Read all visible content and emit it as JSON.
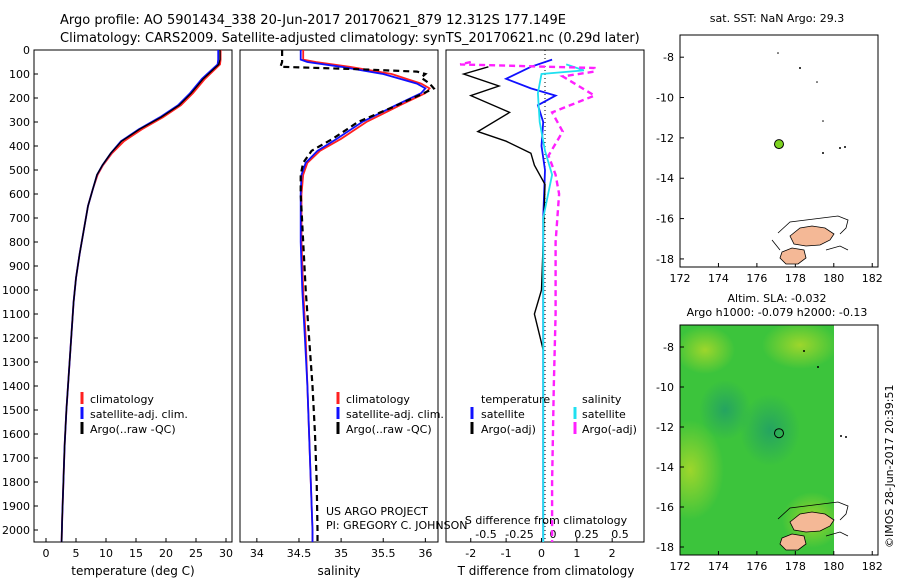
{
  "header": {
    "line1": "Argo profile: AO 5901434_338 20-Jun-2017 20170621_879 12.312S 177.149E",
    "line2": "Climatology: CARS2009. Satellite-adjusted climatology: synTS_20170621.nc (0.29d later)"
  },
  "colors": {
    "climatology": "#ff2020",
    "satellite": "#1010ff",
    "argo": "#000000",
    "sal_satellite": "#20e0f0",
    "sal_argo": "#ff20ff",
    "land": "#f4b896",
    "float_marker": "#7ed321",
    "sla_field": "#3cc43c"
  },
  "depth_axis": {
    "min": 0,
    "max": 2050,
    "ticks": [
      0,
      100,
      200,
      300,
      400,
      500,
      600,
      700,
      800,
      900,
      1000,
      1100,
      1200,
      1300,
      1400,
      1500,
      1600,
      1700,
      1800,
      1900,
      2000
    ]
  },
  "legend": {
    "climatology": "climatology",
    "satellite_clim": "satellite-adj. clim.",
    "argo_raw": "Argo(..raw -QC)",
    "temperature": "temperature",
    "salinity": "salinity",
    "satellite": "satellite",
    "argo_adj": "Argo(-adj)"
  },
  "credits": {
    "project": "US ARGO PROJECT",
    "pi": "PI: GREGORY C. JOHNSON"
  },
  "timestamp": "©IMOS 28-Jun-2017 20:39:51",
  "chart_data": [
    {
      "type": "line",
      "title": "",
      "xlabel": "temperature (deg C)",
      "ylabel": "",
      "xlim": [
        -2,
        31
      ],
      "ylim": [
        2050,
        0
      ],
      "xticks": [
        0,
        5,
        10,
        15,
        20,
        25,
        30
      ],
      "series": [
        {
          "name": "climatology",
          "color": "#ff2020",
          "points": [
            [
              29.1,
              0
            ],
            [
              29.1,
              40
            ],
            [
              29.0,
              60
            ],
            [
              26.5,
              120
            ],
            [
              24.5,
              180
            ],
            [
              22.5,
              230
            ],
            [
              19.5,
              280
            ],
            [
              16,
              330
            ],
            [
              13,
              380
            ],
            [
              11,
              430
            ],
            [
              9.5,
              480
            ],
            [
              8.6,
              520
            ],
            [
              7.8,
              580
            ],
            [
              7,
              650
            ],
            [
              6.3,
              750
            ],
            [
              5.6,
              850
            ],
            [
              5,
              950
            ],
            [
              4.6,
              1050
            ],
            [
              4.2,
              1200
            ],
            [
              3.8,
              1350
            ],
            [
              3.4,
              1500
            ],
            [
              3.1,
              1650
            ],
            [
              2.9,
              1800
            ],
            [
              2.7,
              1950
            ],
            [
              2.6,
              2050
            ]
          ]
        },
        {
          "name": "satellite-adj. clim.",
          "color": "#1010ff",
          "points": [
            [
              28.7,
              0
            ],
            [
              28.7,
              40
            ],
            [
              28.6,
              60
            ],
            [
              26,
              120
            ],
            [
              24,
              180
            ],
            [
              22,
              230
            ],
            [
              19,
              280
            ],
            [
              15.5,
              330
            ],
            [
              12.5,
              380
            ],
            [
              10.8,
              430
            ],
            [
              9.4,
              480
            ],
            [
              8.5,
              520
            ],
            [
              7.8,
              580
            ],
            [
              7,
              650
            ],
            [
              6.3,
              750
            ],
            [
              5.6,
              850
            ],
            [
              5,
              950
            ],
            [
              4.6,
              1050
            ],
            [
              4.2,
              1200
            ],
            [
              3.8,
              1350
            ],
            [
              3.4,
              1500
            ],
            [
              3.1,
              1650
            ],
            [
              2.9,
              1800
            ],
            [
              2.7,
              1950
            ],
            [
              2.6,
              2050
            ]
          ]
        },
        {
          "name": "Argo(..raw -QC)",
          "color": "#000000",
          "points": [
            [
              29,
              0
            ],
            [
              29,
              40
            ],
            [
              28.8,
              60
            ],
            [
              26.2,
              120
            ],
            [
              24.2,
              180
            ],
            [
              22.2,
              230
            ],
            [
              19.2,
              280
            ],
            [
              15.6,
              330
            ],
            [
              12.6,
              380
            ],
            [
              10.8,
              430
            ],
            [
              9.4,
              480
            ],
            [
              8.5,
              520
            ],
            [
              7.8,
              580
            ],
            [
              7,
              650
            ],
            [
              6.3,
              750
            ],
            [
              5.6,
              850
            ],
            [
              5,
              950
            ],
            [
              4.6,
              1050
            ],
            [
              4.2,
              1200
            ],
            [
              3.8,
              1350
            ],
            [
              3.4,
              1500
            ],
            [
              3.1,
              1650
            ],
            [
              2.9,
              1800
            ],
            [
              2.7,
              1950
            ],
            [
              2.6,
              2050
            ]
          ]
        }
      ]
    },
    {
      "type": "line",
      "title": "",
      "xlabel": "salinity",
      "ylabel": "",
      "xlim": [
        33.8,
        36.15
      ],
      "ylim": [
        2050,
        0
      ],
      "xticks": [
        34,
        34.5,
        35,
        35.5,
        36
      ],
      "series": [
        {
          "name": "climatology",
          "color": "#ff2020",
          "points": [
            [
              34.55,
              0
            ],
            [
              34.55,
              40
            ],
            [
              34.7,
              50
            ],
            [
              35.1,
              70
            ],
            [
              35.6,
              100
            ],
            [
              35.95,
              140
            ],
            [
              36.05,
              160
            ],
            [
              36.0,
              180
            ],
            [
              35.7,
              230
            ],
            [
              35.3,
              300
            ],
            [
              35.0,
              370
            ],
            [
              34.75,
              420
            ],
            [
              34.6,
              470
            ],
            [
              34.55,
              520
            ],
            [
              34.53,
              600
            ],
            [
              34.53,
              800
            ],
            [
              34.55,
              1000
            ],
            [
              34.58,
              1200
            ],
            [
              34.6,
              1400
            ],
            [
              34.62,
              1600
            ],
            [
              34.64,
              1800
            ],
            [
              34.66,
              2000
            ],
            [
              34.66,
              2050
            ]
          ]
        },
        {
          "name": "satellite-adj. clim.",
          "color": "#1010ff",
          "points": [
            [
              34.52,
              0
            ],
            [
              34.52,
              40
            ],
            [
              34.6,
              50
            ],
            [
              35.0,
              70
            ],
            [
              35.5,
              100
            ],
            [
              35.9,
              140
            ],
            [
              36.0,
              160
            ],
            [
              35.95,
              180
            ],
            [
              35.65,
              230
            ],
            [
              35.25,
              300
            ],
            [
              34.95,
              370
            ],
            [
              34.72,
              420
            ],
            [
              34.58,
              470
            ],
            [
              34.53,
              520
            ],
            [
              34.52,
              600
            ],
            [
              34.52,
              800
            ],
            [
              34.54,
              1000
            ],
            [
              34.57,
              1200
            ],
            [
              34.6,
              1400
            ],
            [
              34.62,
              1600
            ],
            [
              34.64,
              1800
            ],
            [
              34.66,
              2000
            ],
            [
              34.66,
              2050
            ]
          ]
        },
        {
          "name": "Argo(..raw -QC)",
          "color": "#000000",
          "points": [
            [
              34.3,
              0
            ],
            [
              34.3,
              50
            ],
            [
              34.28,
              70
            ],
            [
              35.2,
              80
            ],
            [
              35.9,
              90
            ],
            [
              36.0,
              100
            ],
            [
              35.95,
              115
            ],
            [
              36.05,
              140
            ],
            [
              36.1,
              160
            ],
            [
              35.95,
              185
            ],
            [
              35.6,
              240
            ],
            [
              35.2,
              300
            ],
            [
              34.9,
              370
            ],
            [
              34.65,
              420
            ],
            [
              34.55,
              470
            ],
            [
              34.52,
              520
            ],
            [
              34.52,
              600
            ],
            [
              34.55,
              800
            ],
            [
              34.58,
              1000
            ],
            [
              34.62,
              1200
            ],
            [
              34.66,
              1400
            ],
            [
              34.69,
              1600
            ],
            [
              34.71,
              1800
            ],
            [
              34.72,
              2000
            ],
            [
              34.72,
              2050
            ]
          ]
        }
      ]
    },
    {
      "type": "line",
      "title": "",
      "xlabel": "T difference from climatology",
      "xlabel2": "S difference from climatology",
      "ylabel": "",
      "xlim": [
        -2.7,
        2.9
      ],
      "ylim": [
        2050,
        0
      ],
      "xticks": [
        -2,
        -1,
        0,
        1,
        2
      ],
      "xticklabels2": [
        "-0.5",
        "-0.25",
        "0",
        "0.25",
        "0.5"
      ],
      "series": [
        {
          "name": "satellite",
          "color": "#1010ff",
          "points": [
            [
              0.3,
              40
            ],
            [
              -0.3,
              70
            ],
            [
              -1.0,
              120
            ],
            [
              -0.3,
              160
            ],
            [
              0.4,
              190
            ],
            [
              -0.1,
              230
            ],
            [
              0.05,
              300
            ],
            [
              0.0,
              400
            ],
            [
              0.1,
              500
            ],
            [
              0.05,
              700
            ],
            [
              0.05,
              1000
            ],
            [
              0.05,
              1500
            ],
            [
              0.05,
              2050
            ]
          ]
        },
        {
          "name": "Argo(-adj)",
          "color": "#000000",
          "points": [
            [
              -1.5,
              70
            ],
            [
              -2.2,
              100
            ],
            [
              -1.2,
              150
            ],
            [
              -2.0,
              190
            ],
            [
              -0.9,
              260
            ],
            [
              -1.8,
              340
            ],
            [
              -1.0,
              380
            ],
            [
              -0.3,
              430
            ],
            [
              -0.2,
              480
            ],
            [
              0.1,
              560
            ],
            [
              0.05,
              800
            ],
            [
              0.0,
              1000
            ],
            [
              -0.2,
              1100
            ],
            [
              0.05,
              1250
            ],
            [
              0.05,
              1600
            ],
            [
              0.05,
              2050
            ]
          ]
        },
        {
          "name": "S satellite",
          "color": "#20e0f0",
          "points": [
            [
              0.7,
              60
            ],
            [
              1.2,
              85
            ],
            [
              0.0,
              100
            ],
            [
              -0.1,
              180
            ],
            [
              -0.05,
              300
            ],
            [
              0.1,
              420
            ],
            [
              0.3,
              520
            ],
            [
              0.05,
              700
            ],
            [
              0.05,
              1500
            ],
            [
              0.05,
              2050
            ]
          ]
        },
        {
          "name": "S Argo(-adj)",
          "color": "#ff20ff",
          "points": [
            [
              -2.0,
              50
            ],
            [
              -2.3,
              60
            ],
            [
              1.5,
              75
            ],
            [
              1.5,
              90
            ],
            [
              0.6,
              110
            ],
            [
              1.5,
              190
            ],
            [
              0.3,
              260
            ],
            [
              0.6,
              340
            ],
            [
              0.2,
              440
            ],
            [
              0.4,
              520
            ],
            [
              0.5,
              600
            ],
            [
              0.4,
              800
            ],
            [
              0.4,
              1100
            ],
            [
              0.35,
              1400
            ],
            [
              0.3,
              1800
            ],
            [
              0.3,
              2050
            ]
          ]
        }
      ]
    }
  ],
  "map_top": {
    "title": "sat. SST: NaN Argo: 29.3",
    "xticks": [
      172,
      174,
      176,
      178,
      180,
      182
    ],
    "yticks": [
      -8,
      -10,
      -12,
      -14,
      -16,
      -18
    ],
    "xlim": [
      172,
      182.3
    ],
    "ylim": [
      -18.4,
      -6.9
    ],
    "float": {
      "lon": 177.15,
      "lat": -12.31
    }
  },
  "map_bottom": {
    "title1": "Altim. SLA: -0.032",
    "title2": "Argo h1000: -0.079 h2000: -0.13",
    "xticks": [
      172,
      174,
      176,
      178,
      180,
      182
    ],
    "yticks": [
      -8,
      -10,
      -12,
      -14,
      -16,
      -18
    ],
    "xlim": [
      172,
      182.3
    ],
    "ylim": [
      -18.4,
      -6.9
    ],
    "float": {
      "lon": 177.15,
      "lat": -12.31
    }
  }
}
